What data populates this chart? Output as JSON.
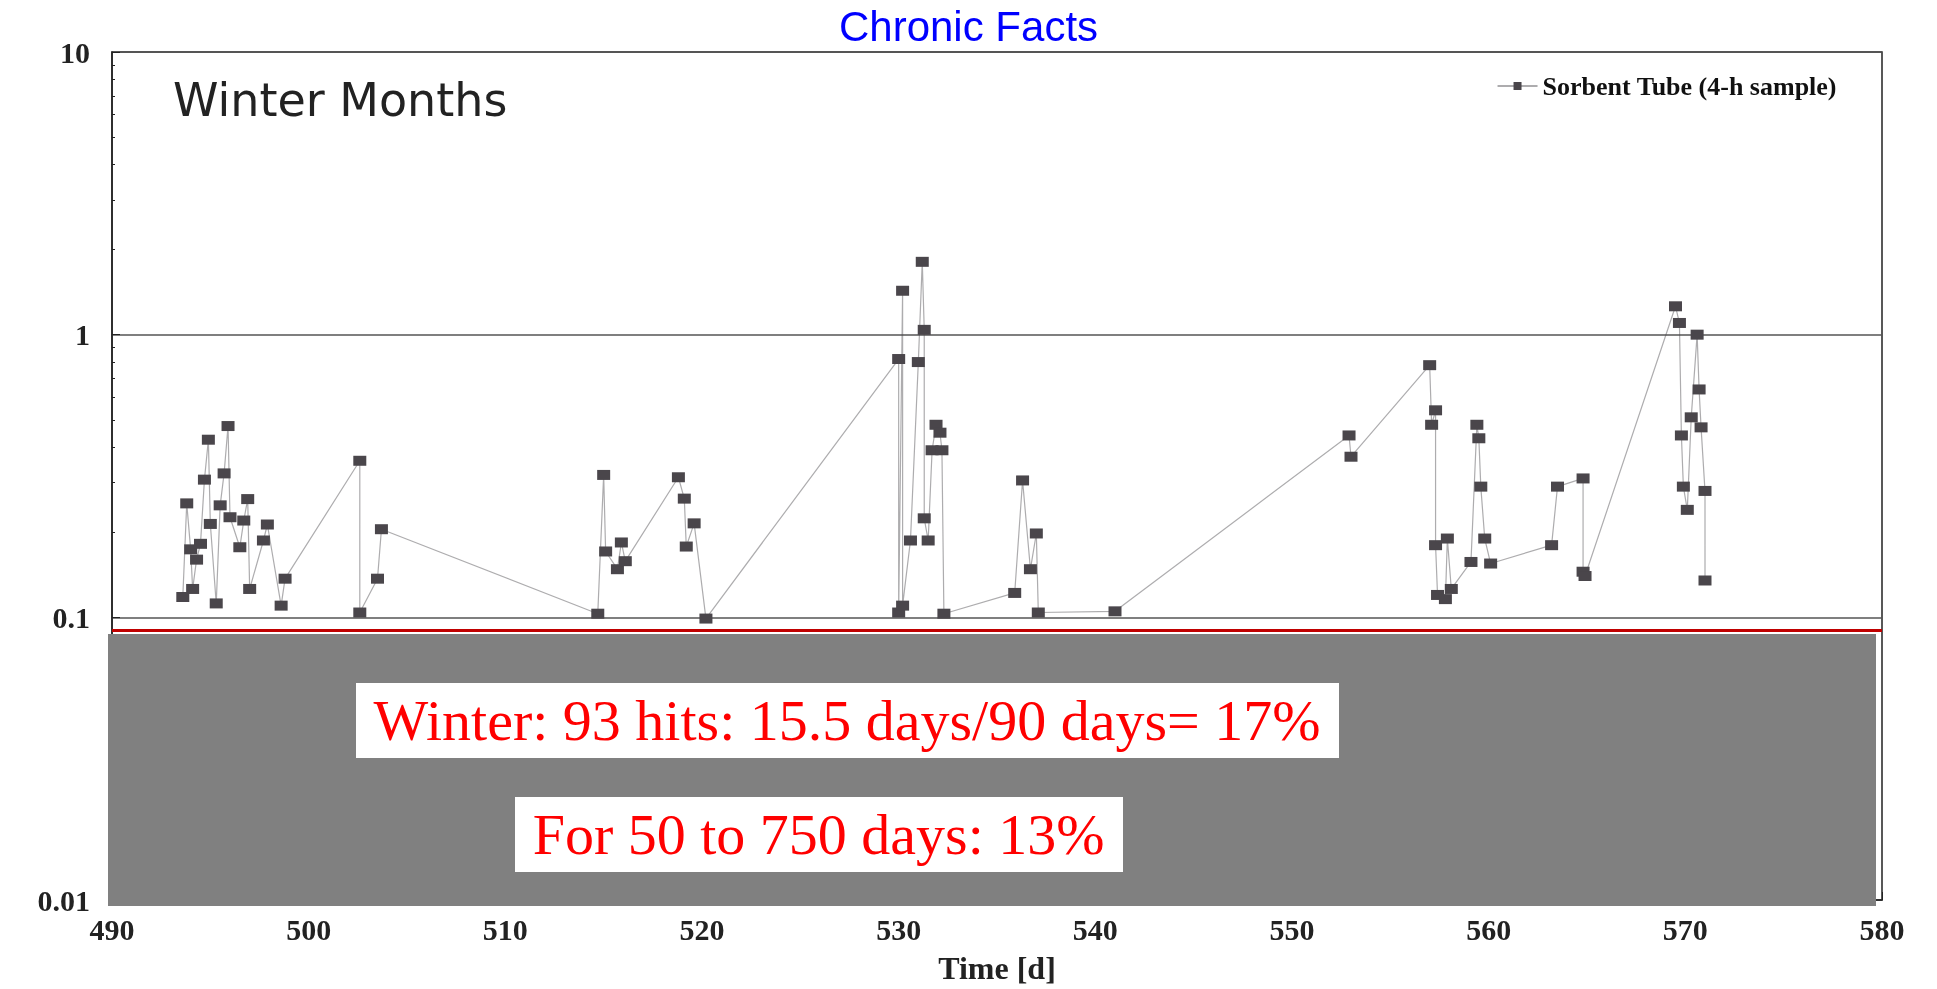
{
  "chart_data": {
    "type": "line",
    "title": "Chronic Facts",
    "subtitle": "Winter Months",
    "xlabel": "Time [d]",
    "x": [
      493.6,
      493.8,
      494.0,
      494.1,
      494.3,
      494.5,
      494.7,
      494.9,
      495.0,
      495.3,
      495.5,
      495.7,
      495.9,
      496.0,
      496.5,
      496.7,
      496.9,
      497.0,
      497.7,
      497.9,
      498.6,
      498.8,
      502.6,
      502.6,
      503.5,
      503.7,
      514.7,
      515.0,
      515.1,
      515.7,
      515.9,
      516.1,
      518.8,
      519.1,
      519.2,
      519.6,
      520.2,
      530.0,
      530.0,
      530.2,
      530.2,
      530.6,
      531.0,
      531.2,
      531.3,
      531.3,
      531.5,
      531.7,
      531.9,
      532.1,
      532.2,
      532.3,
      535.9,
      536.3,
      536.7,
      537.0,
      537.1,
      541.0,
      552.9,
      553.0,
      557.0,
      557.1,
      557.3,
      557.3,
      557.4,
      557.8,
      557.9,
      558.1,
      559.1,
      559.4,
      559.5,
      559.6,
      559.8,
      560.1,
      563.2,
      563.5,
      564.8,
      564.8,
      564.9,
      569.5,
      569.7,
      569.8,
      569.9,
      570.1,
      570.3,
      570.6,
      570.7,
      570.8,
      571.0,
      571.0
    ],
    "series": [
      {
        "name": "Sorbent Tube (4-h sample)",
        "color": "#4a464b",
        "values": [
          0.118,
          0.253,
          0.174,
          0.126,
          0.16,
          0.182,
          0.307,
          0.425,
          0.214,
          0.112,
          0.249,
          0.323,
          0.475,
          0.226,
          0.177,
          0.22,
          0.262,
          0.126,
          0.187,
          0.213,
          0.11,
          0.137,
          0.358,
          0.104,
          0.137,
          0.205,
          0.103,
          0.319,
          0.171,
          0.148,
          0.184,
          0.158,
          0.313,
          0.263,
          0.178,
          0.215,
          0.099,
          0.82,
          0.104,
          1.43,
          0.11,
          0.187,
          0.8,
          1.81,
          1.04,
          0.224,
          0.187,
          0.39,
          0.48,
          0.45,
          0.39,
          0.103,
          0.122,
          0.305,
          0.148,
          0.198,
          0.104,
          0.105,
          0.44,
          0.37,
          0.78,
          0.48,
          0.54,
          0.18,
          0.12,
          0.116,
          0.19,
          0.126,
          0.157,
          0.48,
          0.43,
          0.29,
          0.19,
          0.155,
          0.18,
          0.29,
          0.31,
          0.145,
          0.14,
          1.26,
          1.1,
          0.44,
          0.29,
          0.24,
          0.51,
          1.0,
          0.64,
          0.47,
          0.28,
          0.135
        ]
      }
    ],
    "xlim": [
      490,
      580
    ],
    "xticks": [
      490,
      500,
      510,
      520,
      530,
      540,
      550,
      560,
      570,
      580
    ],
    "ylim": [
      0.01,
      10
    ],
    "yticks": [
      0.01,
      0.1,
      1,
      10
    ],
    "log": "y",
    "grid": "y",
    "legend": "top right",
    "marker": "square",
    "line_style": "solid",
    "ref_lines": [
      {
        "axis": "y",
        "value": 0.09,
        "color": "#c00000",
        "line_style": "solid"
      }
    ],
    "annotations": [
      "Winter: 93 hits: 15.5 days/90 days= 17%",
      "For 50 to 750 days: 13%"
    ]
  }
}
